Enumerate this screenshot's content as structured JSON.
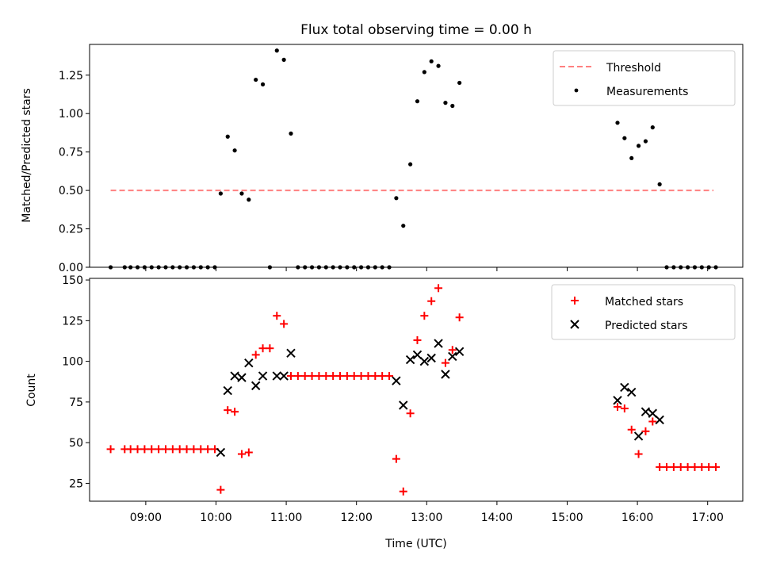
{
  "chart_data": [
    {
      "type": "scatter",
      "title": "Flux total observing time = 0.00 h",
      "xlabel": "",
      "ylabel": "Matched/Predicted stars",
      "xlim": [
        "08:12",
        "17:30"
      ],
      "ylim": [
        0,
        1.45
      ],
      "yticks": [
        "0.00",
        "0.25",
        "0.50",
        "0.75",
        "1.00",
        "1.25"
      ],
      "legend_position": "top-right",
      "threshold": {
        "name": "Threshold",
        "y": 0.5,
        "x": [
          "08:30",
          "17:05"
        ],
        "color": "#ff8080"
      },
      "series": [
        {
          "name": "Measurements",
          "marker": "dot",
          "color": "#000000",
          "points": [
            [
              "08:30",
              0
            ],
            [
              "08:42",
              0
            ],
            [
              "08:47",
              0
            ],
            [
              "08:53",
              0
            ],
            [
              "08:59",
              0
            ],
            [
              "09:05",
              0
            ],
            [
              "09:11",
              0
            ],
            [
              "09:17",
              0
            ],
            [
              "09:23",
              0
            ],
            [
              "09:29",
              0
            ],
            [
              "09:35",
              0
            ],
            [
              "09:41",
              0
            ],
            [
              "09:47",
              0
            ],
            [
              "09:53",
              0
            ],
            [
              "09:59",
              0
            ],
            [
              "10:04",
              0.48
            ],
            [
              "10:10",
              0.85
            ],
            [
              "10:16",
              0.76
            ],
            [
              "10:22",
              0.48
            ],
            [
              "10:28",
              0.44
            ],
            [
              "10:34",
              1.22
            ],
            [
              "10:40",
              1.19
            ],
            [
              "10:46",
              0
            ],
            [
              "10:52",
              1.41
            ],
            [
              "10:58",
              1.35
            ],
            [
              "11:04",
              0.87
            ],
            [
              "11:10",
              0
            ],
            [
              "11:16",
              0
            ],
            [
              "11:22",
              0
            ],
            [
              "11:28",
              0
            ],
            [
              "11:34",
              0
            ],
            [
              "11:40",
              0
            ],
            [
              "11:46",
              0
            ],
            [
              "11:52",
              0
            ],
            [
              "11:58",
              0
            ],
            [
              "12:04",
              0
            ],
            [
              "12:10",
              0
            ],
            [
              "12:16",
              0
            ],
            [
              "12:22",
              0
            ],
            [
              "12:28",
              0
            ],
            [
              "12:34",
              0.45
            ],
            [
              "12:40",
              0.27
            ],
            [
              "12:46",
              0.67
            ],
            [
              "12:52",
              1.08
            ],
            [
              "12:58",
              1.27
            ],
            [
              "13:04",
              1.34
            ],
            [
              "13:10",
              1.31
            ],
            [
              "13:16",
              1.07
            ],
            [
              "13:22",
              1.05
            ],
            [
              "13:28",
              1.2
            ],
            [
              "15:43",
              0.94
            ],
            [
              "15:49",
              0.84
            ],
            [
              "15:55",
              0.71
            ],
            [
              "16:01",
              0.79
            ],
            [
              "16:07",
              0.82
            ],
            [
              "16:13",
              0.91
            ],
            [
              "16:19",
              0.54
            ],
            [
              "16:25",
              0
            ],
            [
              "16:31",
              0
            ],
            [
              "16:37",
              0
            ],
            [
              "16:43",
              0
            ],
            [
              "16:49",
              0
            ],
            [
              "16:55",
              0
            ],
            [
              "17:01",
              0
            ],
            [
              "17:07",
              0
            ]
          ]
        }
      ]
    },
    {
      "type": "scatter",
      "title": "",
      "xlabel": "Time (UTC)",
      "ylabel": "Count",
      "xlim": [
        "08:12",
        "17:30"
      ],
      "ylim": [
        14,
        151
      ],
      "yticks": [
        "25",
        "50",
        "75",
        "100",
        "125",
        "150"
      ],
      "xticks": [
        "09:00",
        "10:00",
        "11:00",
        "12:00",
        "13:00",
        "14:00",
        "15:00",
        "16:00",
        "17:00"
      ],
      "legend_position": "top-right",
      "series": [
        {
          "name": "Matched stars",
          "marker": "plus",
          "color": "#ff0000",
          "points": [
            [
              "08:30",
              46
            ],
            [
              "08:42",
              46
            ],
            [
              "08:47",
              46
            ],
            [
              "08:53",
              46
            ],
            [
              "08:59",
              46
            ],
            [
              "09:05",
              46
            ],
            [
              "09:11",
              46
            ],
            [
              "09:17",
              46
            ],
            [
              "09:23",
              46
            ],
            [
              "09:29",
              46
            ],
            [
              "09:35",
              46
            ],
            [
              "09:41",
              46
            ],
            [
              "09:47",
              46
            ],
            [
              "09:53",
              46
            ],
            [
              "09:59",
              46
            ],
            [
              "10:04",
              21
            ],
            [
              "10:10",
              70
            ],
            [
              "10:16",
              69
            ],
            [
              "10:22",
              43
            ],
            [
              "10:28",
              44
            ],
            [
              "10:34",
              104
            ],
            [
              "10:40",
              108
            ],
            [
              "10:46",
              108
            ],
            [
              "10:52",
              128
            ],
            [
              "10:58",
              123
            ],
            [
              "11:04",
              91
            ],
            [
              "11:10",
              91
            ],
            [
              "11:16",
              91
            ],
            [
              "11:22",
              91
            ],
            [
              "11:28",
              91
            ],
            [
              "11:34",
              91
            ],
            [
              "11:40",
              91
            ],
            [
              "11:46",
              91
            ],
            [
              "11:52",
              91
            ],
            [
              "11:58",
              91
            ],
            [
              "12:04",
              91
            ],
            [
              "12:10",
              91
            ],
            [
              "12:16",
              91
            ],
            [
              "12:22",
              91
            ],
            [
              "12:28",
              91
            ],
            [
              "12:34",
              40
            ],
            [
              "12:40",
              20
            ],
            [
              "12:46",
              68
            ],
            [
              "12:52",
              113
            ],
            [
              "12:58",
              128
            ],
            [
              "13:04",
              137
            ],
            [
              "13:10",
              145
            ],
            [
              "13:16",
              99
            ],
            [
              "13:22",
              107
            ],
            [
              "13:28",
              127
            ],
            [
              "15:43",
              72
            ],
            [
              "15:49",
              71
            ],
            [
              "15:55",
              58
            ],
            [
              "16:01",
              43
            ],
            [
              "16:07",
              57
            ],
            [
              "16:13",
              63
            ],
            [
              "16:19",
              35
            ],
            [
              "16:25",
              35
            ],
            [
              "16:31",
              35
            ],
            [
              "16:37",
              35
            ],
            [
              "16:43",
              35
            ],
            [
              "16:49",
              35
            ],
            [
              "16:55",
              35
            ],
            [
              "17:01",
              35
            ],
            [
              "17:07",
              35
            ]
          ]
        },
        {
          "name": "Predicted stars",
          "marker": "x",
          "color": "#000000",
          "points": [
            [
              "10:04",
              44
            ],
            [
              "10:10",
              82
            ],
            [
              "10:16",
              91
            ],
            [
              "10:22",
              90
            ],
            [
              "10:28",
              99
            ],
            [
              "10:34",
              85
            ],
            [
              "10:40",
              91
            ],
            [
              "10:52",
              91
            ],
            [
              "10:58",
              91
            ],
            [
              "11:04",
              105
            ],
            [
              "12:34",
              88
            ],
            [
              "12:40",
              73
            ],
            [
              "12:46",
              101
            ],
            [
              "12:52",
              104
            ],
            [
              "12:58",
              100
            ],
            [
              "13:04",
              102
            ],
            [
              "13:10",
              111
            ],
            [
              "13:16",
              92
            ],
            [
              "13:22",
              103
            ],
            [
              "13:28",
              106
            ],
            [
              "15:43",
              76
            ],
            [
              "15:49",
              84
            ],
            [
              "15:55",
              81
            ],
            [
              "16:01",
              54
            ],
            [
              "16:07",
              69
            ],
            [
              "16:13",
              68
            ],
            [
              "16:19",
              64
            ]
          ]
        }
      ]
    }
  ]
}
